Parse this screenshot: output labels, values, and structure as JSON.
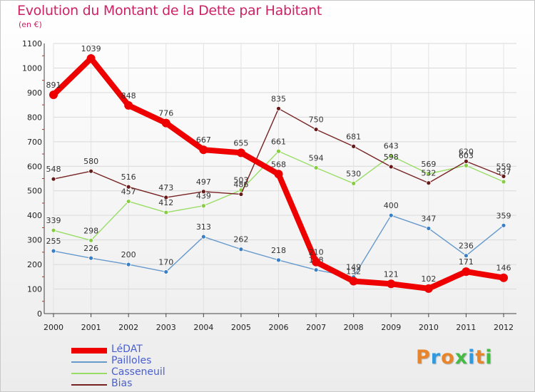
{
  "header": {
    "title": "Evolution du Montant de la Dette par Habitant",
    "subtitle": "(en €)"
  },
  "logo": {
    "text": "Proxiti",
    "colors": [
      "#e8852a",
      "#3399dd",
      "#e8852a",
      "#44bb44",
      "#3399dd",
      "#e8852a",
      "#44bb44"
    ]
  },
  "chart_data": {
    "type": "line",
    "x": [
      "2000",
      "2001",
      "2002",
      "2003",
      "2004",
      "2005",
      "2006",
      "2007",
      "2008",
      "2009",
      "2010",
      "2011",
      "2012"
    ],
    "ylim": [
      0,
      1100
    ],
    "yticks": [
      0,
      100,
      200,
      300,
      400,
      500,
      600,
      700,
      800,
      900,
      1000,
      1100
    ],
    "grid": true,
    "legend_position": "bottom-left",
    "series": [
      {
        "name": "LéDAT",
        "color": "#ee0000",
        "marker": "#ee0000",
        "emphasis": true,
        "values": [
          891,
          1039,
          848,
          776,
          667,
          655,
          568,
          210,
          132,
          121,
          102,
          171,
          146
        ]
      },
      {
        "name": "Pailloles",
        "color": "#6699cc",
        "marker": "#3a7fc4",
        "emphasis": false,
        "values": [
          255,
          226,
          200,
          170,
          313,
          262,
          218,
          178,
          149,
          400,
          347,
          236,
          359
        ]
      },
      {
        "name": "Casseneuil",
        "color": "#99dd66",
        "marker": "#88cc44",
        "emphasis": false,
        "values": [
          339,
          298,
          457,
          412,
          439,
          503,
          661,
          594,
          530,
          643,
          569,
          603,
          537
        ]
      },
      {
        "name": "Bias",
        "color": "#772222",
        "marker": "#661a1a",
        "emphasis": false,
        "values": [
          548,
          580,
          516,
          473,
          497,
          486,
          835,
          750,
          681,
          598,
          532,
          620,
          559
        ]
      }
    ]
  }
}
